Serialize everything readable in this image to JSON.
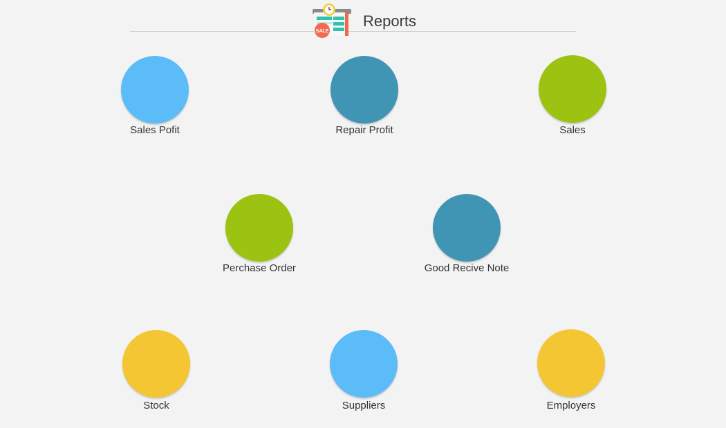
{
  "header": {
    "title": "Reports",
    "icon": "report-sale-icon",
    "icon_badge": "SALE"
  },
  "colors": {
    "background": "#f2f3f2",
    "light_blue": "#5bbcf8",
    "teal_blue": "#4195b4",
    "green": "#9cc212",
    "yellow": "#f4c634"
  },
  "tiles": [
    {
      "label": "Sales Pofit",
      "color": "#5bbcf8"
    },
    {
      "label": "Repair Profit",
      "color": "#4195b4"
    },
    {
      "label": "Sales",
      "color": "#9cc212"
    },
    {
      "label": "Perchase Order",
      "color": "#9cc212"
    },
    {
      "label": "Good Recive Note",
      "color": "#4195b4"
    },
    {
      "label": "Stock",
      "color": "#f4c634"
    },
    {
      "label": "Suppliers",
      "color": "#5bbcf8"
    },
    {
      "label": "Employers",
      "color": "#f4c634"
    }
  ]
}
